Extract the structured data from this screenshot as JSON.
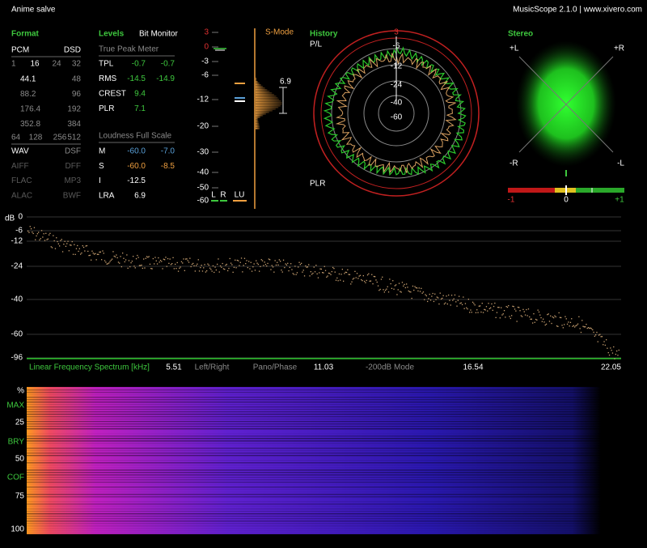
{
  "header": {
    "title": "Anime salve",
    "app": "MusicScope 2.1.0 | www.xivero.com"
  },
  "format": {
    "title": "Format",
    "pcm": "PCM",
    "dsd": "DSD",
    "bits": [
      "1",
      "16",
      "24",
      "32"
    ],
    "rates": [
      [
        "44.1",
        "48"
      ],
      [
        "88.2",
        "96"
      ],
      [
        "176.4",
        "192"
      ],
      [
        "352.8",
        "384"
      ]
    ],
    "dsd_rates": [
      "64",
      "128",
      "256",
      "512"
    ],
    "formats": [
      [
        "WAV",
        "DSF"
      ],
      [
        "AIFF",
        "DFF"
      ],
      [
        "FLAC",
        "MP3"
      ],
      [
        "ALAC",
        "BWF"
      ]
    ]
  },
  "levels": {
    "title": "Levels",
    "bit_monitor": "Bit Monitor",
    "tp_title": "True Peak Meter",
    "rows": [
      {
        "label": "TPL",
        "l": "-0.7",
        "r": "-0.7"
      },
      {
        "label": "RMS",
        "l": "-14.5",
        "r": "-14.9"
      },
      {
        "label": "CREST",
        "l": "9.4"
      },
      {
        "label": "PLR",
        "l": "7.1"
      }
    ],
    "loud_title": "Loudness Full Scale",
    "loud_rows": [
      {
        "label": "M",
        "l": "-60.0",
        "r": "-7.0"
      },
      {
        "label": "S",
        "l": "-60.0",
        "r": "-8.5"
      },
      {
        "label": "I",
        "l": "-12.5"
      },
      {
        "label": "LRA",
        "l": "6.9"
      }
    ]
  },
  "smode": {
    "title": "S-Mode",
    "scale": [
      "3",
      "0",
      "-3",
      "-6",
      "-12",
      "-20",
      "-30",
      "-40",
      "-50",
      "-60"
    ],
    "value": "6.9",
    "channels": [
      "L",
      "R",
      "LU"
    ]
  },
  "history": {
    "title": "History",
    "pl": "P/L",
    "plr": "PLR",
    "rings": [
      "3",
      "-6",
      "-12",
      "-24",
      "-40",
      "-60"
    ]
  },
  "stereo": {
    "title": "Stereo",
    "corners": [
      "+L",
      "+R",
      "-R",
      "-L"
    ],
    "scale": [
      "-1",
      "0",
      "+1"
    ]
  },
  "spectrum": {
    "unit": "dB",
    "yticks": [
      "0",
      "-6",
      "-12",
      "-24",
      "-40",
      "-60",
      "-96"
    ],
    "title": "Linear Frequency Spectrum [kHz]",
    "xticks": [
      "5.51",
      "11.03",
      "16.54",
      "22.05"
    ],
    "modes": [
      "Left/Right",
      "Pano/Phase",
      "-200dB Mode"
    ]
  },
  "spectrogram": {
    "labels": [
      "%",
      "MAX",
      "25",
      "BRY",
      "50",
      "COF",
      "75",
      "100"
    ]
  }
}
